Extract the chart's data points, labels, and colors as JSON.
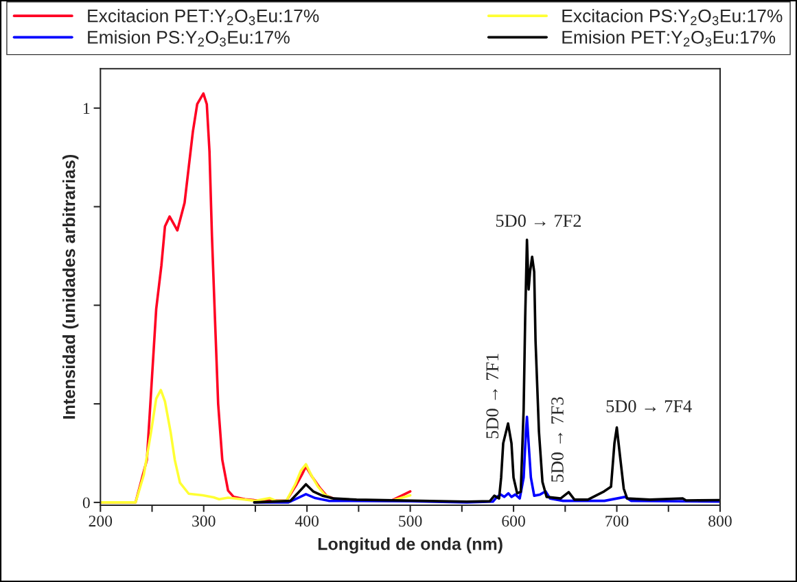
{
  "chart_data": {
    "type": "line",
    "xlabel": "Longitud de onda (nm)",
    "ylabel": "Intensidad (unidades arbitrarias)",
    "xlim": [
      200,
      800
    ],
    "xticks": [
      200,
      {
        "value": 250,
        "label": null
      },
      300,
      {
        "value": 350,
        "label": null
      },
      400,
      {
        "value": 450,
        "label": null
      },
      500,
      {
        "value": 550,
        "label": null
      },
      600,
      {
        "value": 650,
        "label": null
      },
      700,
      {
        "value": 750,
        "label": null
      },
      800
    ],
    "ylim": [
      -0.007,
      1.1
    ],
    "yticks": [
      0,
      {
        "value": 0.25,
        "label": null
      },
      {
        "value": 0.5,
        "label": null
      },
      {
        "value": 0.75,
        "label": null
      },
      1
    ],
    "legend": "top",
    "grid": false,
    "line_style": "solid",
    "series": [
      {
        "name": "Excitacion PET:Y$_{2}$O$_{3}$Eu:17%",
        "color": "#ff0022",
        "x": [
          200,
          234,
          245,
          250,
          254,
          259,
          262.5,
          267,
          274.5,
          281.5,
          285.5,
          289.5,
          293.7,
          299.7,
          303,
          305.6,
          308,
          311,
          314,
          318,
          323.6,
          329,
          340,
          349,
          380,
          390,
          395,
          399,
          405,
          413,
          419,
          430,
          482,
          500
        ],
        "values": [
          0,
          0,
          0.108,
          0.32,
          0.49,
          0.6,
          0.7,
          0.725,
          0.69,
          0.76,
          0.85,
          0.94,
          1.01,
          1.037,
          1.01,
          0.89,
          0.675,
          0.46,
          0.25,
          0.108,
          0.03,
          0.014,
          0.008,
          0.006,
          0.004,
          0.046,
          0.07,
          0.091,
          0.065,
          0.035,
          0.017,
          0.005,
          0.005,
          0.028
        ]
      },
      {
        "name": "Excitacion PS:Y$_{2}$O$_{3}$Eu:17%",
        "color": "#ffff33",
        "x": [
          200,
          234,
          242,
          249,
          254,
          258.5,
          262.5,
          268,
          272,
          277,
          285.5,
          299,
          309.6,
          315,
          323.6,
          337,
          350,
          364,
          370,
          380,
          388.7,
          394,
          399,
          404,
          410.6,
          417,
          426,
          480,
          500
        ],
        "values": [
          0,
          0,
          0.07,
          0.178,
          0.263,
          0.285,
          0.256,
          0.178,
          0.108,
          0.05,
          0.022,
          0.018,
          0.013,
          0.008,
          0.012,
          0.008,
          0.004,
          0.011,
          0.004,
          0.004,
          0.046,
          0.08,
          0.097,
          0.07,
          0.04,
          0.02,
          0.007,
          0.003,
          0.018
        ]
      },
      {
        "name": "Emision PS:Y$_{2}$O$_{3}$Eu:17%",
        "color": "#0000ff",
        "x": [
          349,
          382,
          391,
          399,
          408,
          421,
          500,
          554.8,
          580,
          584,
          587.7,
          591,
          595,
          598,
          601.7,
          606,
          609.8,
          612,
          613,
          614.6,
          616.8,
          620,
          625.7,
          631,
          635.4,
          648,
          688,
          708,
          714,
          799.5
        ],
        "values": [
          0,
          0,
          0.011,
          0.021,
          0.011,
          0.004,
          0.003,
          0,
          0.002,
          0.014,
          0.02,
          0.014,
          0.023,
          0.014,
          0.02,
          0.01,
          0.063,
          0.18,
          0.217,
          0.15,
          0.063,
          0.017,
          0.02,
          0.028,
          0.01,
          0.004,
          0.004,
          0.014,
          0.004,
          0.002
        ]
      },
      {
        "name": "Emision PET:Y$_{2}$O$_{3}$Eu:17%",
        "color": "#000000",
        "x": [
          349,
          384,
          392,
          399,
          406,
          415,
          426,
          448,
          554.8,
          577,
          581.4,
          586,
          588,
          590,
          594.7,
          598,
          600,
          603.5,
          607,
          609.8,
          611.3,
          613,
          614.6,
          616,
          618,
          620,
          621.3,
          624.6,
          628,
          632,
          645.6,
          653.4,
          659,
          672,
          687.7,
          694.4,
          697.7,
          700,
          703,
          706.7,
          710,
          732,
          764,
          767,
          799.5
        ],
        "values": [
          0,
          0.004,
          0.026,
          0.046,
          0.028,
          0.017,
          0.01,
          0.007,
          0.002,
          0.003,
          0.017,
          0.01,
          0.063,
          0.15,
          0.2,
          0.15,
          0.063,
          0.023,
          0.027,
          0.237,
          0.47,
          0.666,
          0.54,
          0.585,
          0.623,
          0.585,
          0.41,
          0.18,
          0.052,
          0.014,
          0.01,
          0.026,
          0.007,
          0.007,
          0.028,
          0.04,
          0.15,
          0.19,
          0.12,
          0.035,
          0.01,
          0.007,
          0.01,
          0.005,
          0.006
        ]
      }
    ],
    "annotations": [
      "5D0 → 7F1",
      "5D0 → 7F2",
      "5D0 → 7F3",
      "5D0 → 7F4"
    ]
  }
}
